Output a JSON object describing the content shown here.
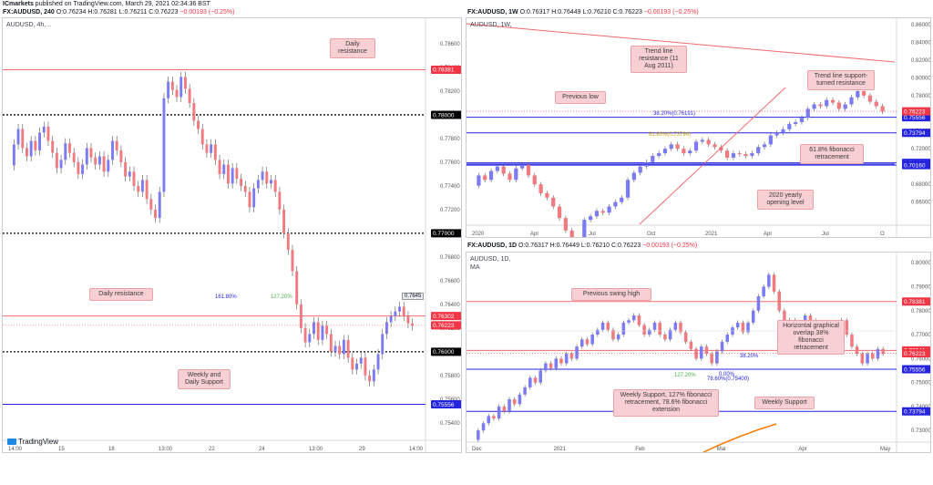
{
  "header": {
    "publisher": "ICmarkets published on TradingView.com, March 29, 2021 02:34:36 BST",
    "publisher_name": "ICmarkets",
    "publisher_rest": " published on TradingView.com, March 29, 2021 02:34:36 BST"
  },
  "colors": {
    "up": "#7b7bf3",
    "down": "#f07a80",
    "resistance": "#f26a70",
    "support": "#2424e0",
    "key_black": "#000000",
    "callout_bg": "#f8cfd2"
  },
  "watermark": "TradingView",
  "chart_data": [
    {
      "id": "pane1",
      "type": "candlestick",
      "header": "FX:AUDUSD, 240  O:0.76234  H:0.76281  L:0.76211  C:0.76223",
      "header_symbol": "FX:AUDUSD, 240",
      "header_ohlc": "O:0.76234  H:0.76281  L:0.76211  C:0.76223",
      "change": "−0.00193 (−0.25%)",
      "symbol_label": "AUDUSD, 4h, ..",
      "x_ticks": [
        "14:00",
        "15",
        "18",
        "13:00",
        "22",
        "24",
        "13:00",
        "29",
        "14:00"
      ],
      "y_ticks": [
        0.786,
        0.784,
        0.782,
        0.778,
        0.776,
        0.774,
        0.772,
        0.768,
        0.766,
        0.764,
        0.762,
        0.758,
        0.756,
        0.754
      ],
      "ylim": [
        0.7526,
        0.788
      ],
      "levels": [
        {
          "label": "0.78381",
          "value": 0.78381,
          "style": "red"
        },
        {
          "label": "0.78000",
          "value": 0.78,
          "style": "black"
        },
        {
          "label": "0.77000",
          "value": 0.77,
          "style": "black"
        },
        {
          "label": "0.76302",
          "value": 0.76302,
          "style": "red"
        },
        {
          "label": "0.76000",
          "value": 0.76,
          "style": "black"
        },
        {
          "label": "0.75556",
          "value": 0.75556,
          "style": "blue"
        }
      ],
      "price_tag": "0.76223",
      "fib_labels": [
        "161.80%",
        "127.20%"
      ],
      "fib_tag": "0.7645",
      "annotations": [
        "Daily resistance",
        "Daily resistance",
        "Weekly and Daily Support"
      ],
      "closes": [
        0.7775,
        0.7788,
        0.7772,
        0.7765,
        0.7778,
        0.777,
        0.7785,
        0.779,
        0.7778,
        0.7768,
        0.7755,
        0.7762,
        0.7776,
        0.7768,
        0.776,
        0.775,
        0.7758,
        0.7772,
        0.7764,
        0.7758,
        0.7765,
        0.7752,
        0.7762,
        0.7778,
        0.777,
        0.776,
        0.7748,
        0.7752,
        0.774,
        0.7735,
        0.7745,
        0.7729,
        0.772,
        0.7713,
        0.7735,
        0.7814,
        0.7828,
        0.7821,
        0.7815,
        0.7832,
        0.7822,
        0.781,
        0.7795,
        0.7788,
        0.7775,
        0.7768,
        0.7775,
        0.7762,
        0.775,
        0.7758,
        0.7742,
        0.7755,
        0.7746,
        0.774,
        0.7735,
        0.7722,
        0.7738,
        0.7745,
        0.7752,
        0.7742,
        0.7745,
        0.7735,
        0.772,
        0.77,
        0.7686,
        0.7668,
        0.764,
        0.762,
        0.7608,
        0.7615,
        0.7625,
        0.761,
        0.7622,
        0.7615,
        0.76,
        0.7605,
        0.7598,
        0.761,
        0.7595,
        0.7585,
        0.759,
        0.7595,
        0.758,
        0.7575,
        0.7585,
        0.7598,
        0.7615,
        0.7625,
        0.763,
        0.7634,
        0.7638,
        0.763,
        0.7624,
        0.7622
      ]
    },
    {
      "id": "pane2",
      "type": "candlestick",
      "header": "FX:AUDUSD, 1W  O:0.76317  H:0.76449  L:0.76210  C:0.76223",
      "header_symbol": "FX:AUDUSD, 1W",
      "header_ohlc": "O:0.76317  H:0.76449  L:0.76210  C:0.76223",
      "change": "−0.00193 (−0.25%)",
      "symbol_label": "AUDUSD, 1W,",
      "x_ticks": [
        "2020",
        "Apr",
        "Jul",
        "Oct",
        "2021",
        "Apr",
        "Jul",
        "O"
      ],
      "y_ticks": [
        0.86,
        0.84,
        0.82,
        0.8,
        0.78,
        0.74,
        0.72,
        0.68,
        0.66
      ],
      "ylim": [
        0.635,
        0.865
      ],
      "levels": [
        {
          "label": "0.75556",
          "value": 0.75556,
          "style": "blue"
        },
        {
          "label": "0.73794",
          "value": 0.73794,
          "style": "blue"
        },
        {
          "label": "0.70420",
          "value": 0.7042,
          "style": "blue"
        },
        {
          "label": "0.70160",
          "value": 0.7016,
          "style": "blue"
        }
      ],
      "price_tag": "0.76223",
      "fib_labels": [
        "38.20%(0.76191)",
        "61.80%(0.73794)"
      ],
      "annotations": [
        "Trend line resistance (11 Aug 2011)",
        "Trend line support-turned resistance",
        "Previous low",
        "61.8% fibonacci retracement",
        "2020 yearly opening level"
      ],
      "closes": [
        0.69,
        0.685,
        0.695,
        0.7,
        0.692,
        0.685,
        0.698,
        0.702,
        0.69,
        0.68,
        0.67,
        0.665,
        0.655,
        0.642,
        0.628,
        0.615,
        0.61,
        0.64,
        0.644,
        0.65,
        0.648,
        0.655,
        0.66,
        0.665,
        0.685,
        0.693,
        0.7,
        0.705,
        0.712,
        0.715,
        0.72,
        0.725,
        0.72,
        0.715,
        0.718,
        0.728,
        0.73,
        0.725,
        0.722,
        0.718,
        0.71,
        0.715,
        0.714,
        0.712,
        0.715,
        0.722,
        0.725,
        0.735,
        0.738,
        0.742,
        0.748,
        0.75,
        0.755,
        0.765,
        0.77,
        0.768,
        0.775,
        0.772,
        0.765,
        0.77,
        0.778,
        0.785,
        0.78,
        0.773,
        0.768,
        0.762
      ]
    },
    {
      "id": "pane3",
      "type": "candlestick",
      "header": "FX:AUDUSD, 1D  O:0.76317  H:0.76449  L:0.76210  C:0.76223",
      "header_symbol": "FX:AUDUSD, 1D",
      "header_ohlc": "O:0.76317  H:0.76449  L:0.76210  C:0.76223",
      "change": "−0.00193 (−0.25%)",
      "symbol_label": "AUDUSD, 1D,",
      "indicator_label": "MA",
      "x_ticks": [
        "Dec",
        "2021",
        "Feb",
        "Mar",
        "Apr",
        "May"
      ],
      "y_ticks": [
        0.8,
        0.79,
        0.78,
        0.77,
        0.76,
        0.75,
        0.74,
        0.73
      ],
      "ylim": [
        0.7255,
        0.8035
      ],
      "levels": [
        {
          "label": "0.78381",
          "value": 0.78381,
          "style": "red"
        },
        {
          "label": "0.76341",
          "value": 0.76341,
          "style": "red"
        },
        {
          "label": "0.75556",
          "value": 0.75556,
          "style": "blue"
        },
        {
          "label": "0.73794",
          "value": 0.73794,
          "style": "blue"
        }
      ],
      "price_tag": "0.76223",
      "fib_labels": [
        "38.20%",
        "78.60%(0.75400)",
        "0.00%",
        "127.20%"
      ],
      "annotations": [
        "Previous swing high",
        "Horizontal graphical overlap 38% fibonacci retracement",
        "Weekly Support, 127% fibonacci retracement, 78.6% fibonacci extension",
        "Weekly Support"
      ],
      "closes": [
        0.73,
        0.733,
        0.736,
        0.735,
        0.74,
        0.738,
        0.743,
        0.741,
        0.745,
        0.748,
        0.752,
        0.75,
        0.755,
        0.758,
        0.756,
        0.76,
        0.758,
        0.762,
        0.76,
        0.765,
        0.768,
        0.766,
        0.77,
        0.772,
        0.775,
        0.772,
        0.768,
        0.77,
        0.775,
        0.776,
        0.778,
        0.774,
        0.77,
        0.772,
        0.775,
        0.77,
        0.768,
        0.772,
        0.775,
        0.771,
        0.767,
        0.764,
        0.76,
        0.765,
        0.762,
        0.758,
        0.763,
        0.767,
        0.77,
        0.773,
        0.775,
        0.771,
        0.775,
        0.78,
        0.786,
        0.79,
        0.795,
        0.788,
        0.78,
        0.774,
        0.776,
        0.77,
        0.773,
        0.778,
        0.776,
        0.77,
        0.768,
        0.764,
        0.77,
        0.773,
        0.776,
        0.77,
        0.765,
        0.762,
        0.758,
        0.762,
        0.76,
        0.764,
        0.762
      ]
    }
  ]
}
